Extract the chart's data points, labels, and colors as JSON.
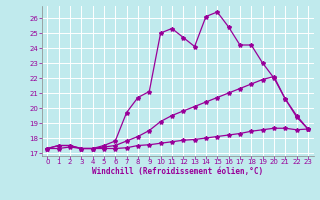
{
  "xlabel": "Windchill (Refroidissement éolien,°C)",
  "bg_color": "#c0eaed",
  "line_color": "#990099",
  "grid_color": "#ffffff",
  "xlim": [
    -0.5,
    23.5
  ],
  "ylim": [
    16.8,
    26.8
  ],
  "yticks": [
    17,
    18,
    19,
    20,
    21,
    22,
    23,
    24,
    25,
    26
  ],
  "xticks": [
    0,
    1,
    2,
    3,
    4,
    5,
    6,
    7,
    8,
    9,
    10,
    11,
    12,
    13,
    14,
    15,
    16,
    17,
    18,
    19,
    20,
    21,
    22,
    23
  ],
  "line1_x": [
    0,
    1,
    2,
    3,
    4,
    5,
    6,
    7,
    8,
    9,
    10,
    11,
    12,
    13,
    14,
    15,
    16,
    17,
    18,
    19,
    20,
    21,
    22,
    23
  ],
  "line1_y": [
    17.3,
    17.3,
    17.4,
    17.3,
    17.3,
    17.3,
    17.3,
    17.35,
    17.5,
    17.55,
    17.65,
    17.75,
    17.85,
    17.9,
    18.0,
    18.1,
    18.2,
    18.3,
    18.45,
    18.55,
    18.65,
    18.65,
    18.55,
    18.6
  ],
  "line2_x": [
    0,
    1,
    2,
    3,
    4,
    5,
    6,
    7,
    8,
    9,
    10,
    11,
    12,
    13,
    14,
    15,
    16,
    17,
    18,
    19,
    20,
    21,
    22,
    23
  ],
  "line2_y": [
    17.3,
    17.5,
    17.5,
    17.3,
    17.3,
    17.4,
    17.5,
    17.8,
    18.1,
    18.5,
    19.1,
    19.5,
    19.8,
    20.1,
    20.4,
    20.7,
    21.0,
    21.3,
    21.6,
    21.9,
    22.1,
    20.6,
    19.5,
    18.6
  ],
  "line3_x": [
    0,
    1,
    2,
    3,
    4,
    5,
    6,
    7,
    8,
    9,
    10,
    11,
    12,
    13,
    14,
    15,
    16,
    17,
    18,
    19,
    20,
    21,
    22,
    23
  ],
  "line3_y": [
    17.3,
    17.5,
    17.5,
    17.3,
    17.3,
    17.5,
    17.8,
    19.7,
    20.7,
    21.1,
    25.0,
    25.3,
    24.7,
    24.1,
    26.1,
    26.4,
    25.4,
    24.2,
    24.2,
    23.0,
    22.0,
    20.6,
    19.4,
    18.6
  ],
  "markersize": 3,
  "linewidth": 0.9,
  "tick_fontsize": 5,
  "xlabel_fontsize": 5.5
}
